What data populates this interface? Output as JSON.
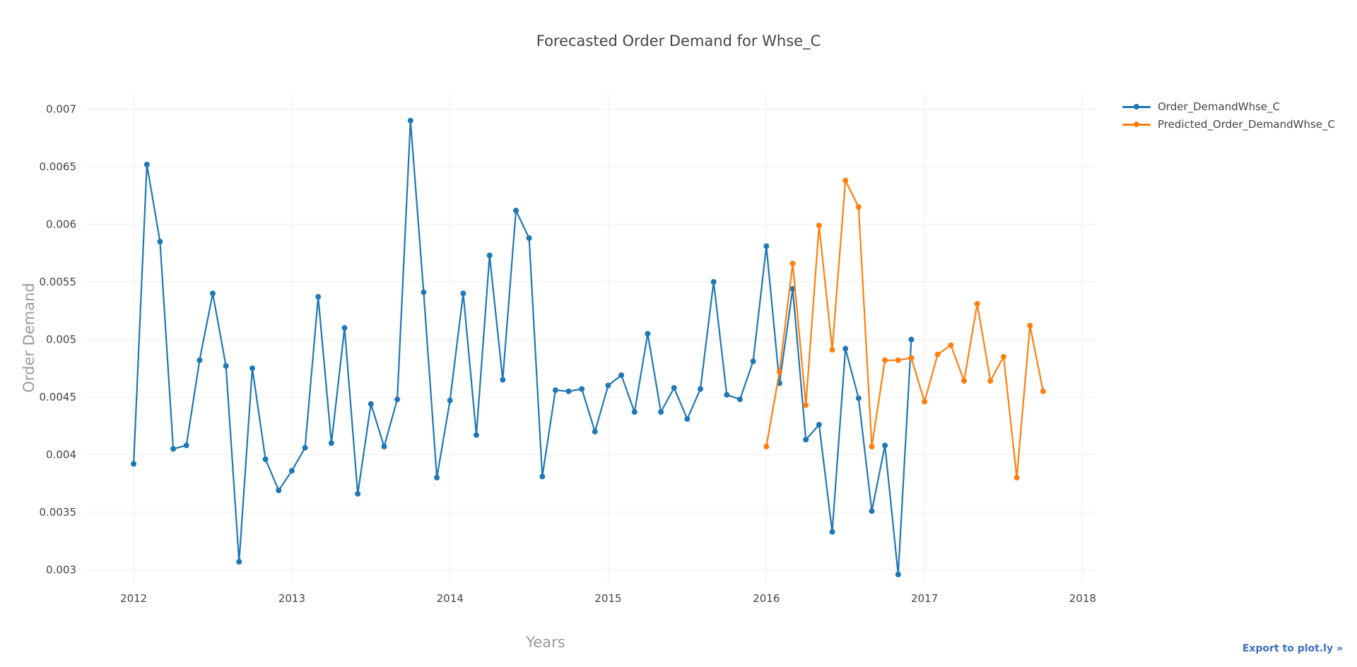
{
  "colors": {
    "series_0": "#1f77b4",
    "series_1": "#ff7f0e",
    "grid": "#eeeeee",
    "axis_text": "#444444",
    "axis_title": "#999999",
    "link": "#3D6EC0"
  },
  "export_label": "Export to plot.ly »",
  "chart_data": {
    "type": "line",
    "title": "Forecasted Order Demand for Whse_C",
    "xlabel": "Years",
    "ylabel": "Order Demand",
    "xlim": [
      2011.7,
      2018.09
    ],
    "ylim": [
      0.00288,
      0.00715
    ],
    "x_ticks": [
      2012,
      2013,
      2014,
      2015,
      2016,
      2017,
      2018
    ],
    "x_tick_labels": [
      "2012",
      "2013",
      "2014",
      "2015",
      "2016",
      "2017",
      "2018"
    ],
    "y_ticks": [
      0.003,
      0.0035,
      0.004,
      0.0045,
      0.005,
      0.0055,
      0.006,
      0.0065,
      0.007
    ],
    "y_tick_labels": [
      "0.003",
      "0.0035",
      "0.004",
      "0.0045",
      "0.005",
      "0.0055",
      "0.006",
      "0.0065",
      "0.007"
    ],
    "grid": true,
    "legend_position": "top-right",
    "series": [
      {
        "name": "Order_DemandWhse_C",
        "x": [
          "2012-01",
          "2012-02",
          "2012-03",
          "2012-04",
          "2012-05",
          "2012-06",
          "2012-07",
          "2012-08",
          "2012-09",
          "2012-10",
          "2012-11",
          "2012-12",
          "2013-01",
          "2013-02",
          "2013-03",
          "2013-04",
          "2013-05",
          "2013-06",
          "2013-07",
          "2013-08",
          "2013-09",
          "2013-10",
          "2013-11",
          "2013-12",
          "2014-01",
          "2014-02",
          "2014-03",
          "2014-04",
          "2014-05",
          "2014-06",
          "2014-07",
          "2014-08",
          "2014-09",
          "2014-10",
          "2014-11",
          "2014-12",
          "2015-01",
          "2015-02",
          "2015-03",
          "2015-04",
          "2015-05",
          "2015-06",
          "2015-07",
          "2015-08",
          "2015-09",
          "2015-10",
          "2015-11",
          "2015-12",
          "2016-01",
          "2016-02",
          "2016-03",
          "2016-04",
          "2016-05",
          "2016-06",
          "2016-07",
          "2016-08",
          "2016-09",
          "2016-10",
          "2016-11",
          "2016-12"
        ],
        "y": [
          0.00392,
          0.00652,
          0.00585,
          0.00405,
          0.00408,
          0.00482,
          0.0054,
          0.00477,
          0.00307,
          0.00475,
          0.00396,
          0.00369,
          0.00386,
          0.00406,
          0.00537,
          0.0041,
          0.0051,
          0.00366,
          0.00444,
          0.00407,
          0.00448,
          0.0069,
          0.00541,
          0.0038,
          0.00447,
          0.0054,
          0.00417,
          0.00573,
          0.00465,
          0.00612,
          0.00588,
          0.00381,
          0.00456,
          0.00455,
          0.00457,
          0.0042,
          0.0046,
          0.00469,
          0.00437,
          0.00505,
          0.00437,
          0.00458,
          0.00431,
          0.00457,
          0.0055,
          0.00452,
          0.00448,
          0.00481,
          0.00581,
          0.00462,
          0.00544,
          0.00413,
          0.00426,
          0.00333,
          0.00492,
          0.00449,
          0.00351,
          0.00408,
          0.00296,
          0.005
        ]
      },
      {
        "name": "Predicted_Order_DemandWhse_C",
        "x": [
          "2016-01",
          "2016-02",
          "2016-03",
          "2016-04",
          "2016-05",
          "2016-06",
          "2016-07",
          "2016-08",
          "2016-09",
          "2016-10",
          "2016-11",
          "2016-12",
          "2017-01",
          "2017-02",
          "2017-03",
          "2017-04",
          "2017-05",
          "2017-06",
          "2017-07",
          "2017-08",
          "2017-09",
          "2017-10"
        ],
        "y": [
          0.00407,
          0.00472,
          0.00566,
          0.00443,
          0.00599,
          0.00491,
          0.00638,
          0.00615,
          0.00407,
          0.00482,
          0.00482,
          0.00484,
          0.00446,
          0.00487,
          0.00495,
          0.00464,
          0.00531,
          0.00464,
          0.00485,
          0.0038,
          0.00512,
          0.00455
        ]
      }
    ]
  }
}
